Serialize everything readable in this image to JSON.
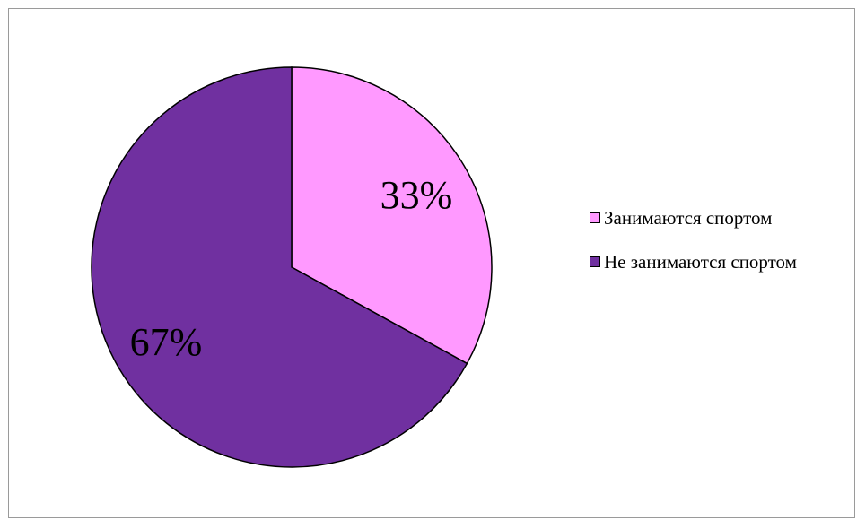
{
  "chart_data": {
    "type": "pie",
    "categories": [
      "Занимаются спортом",
      "Не занимаются спортом"
    ],
    "values": [
      33,
      67
    ],
    "data_labels": [
      "33%",
      "67%"
    ],
    "colors": [
      "#FF99FF",
      "#7030A0"
    ],
    "legend_position": "right",
    "title": ""
  }
}
